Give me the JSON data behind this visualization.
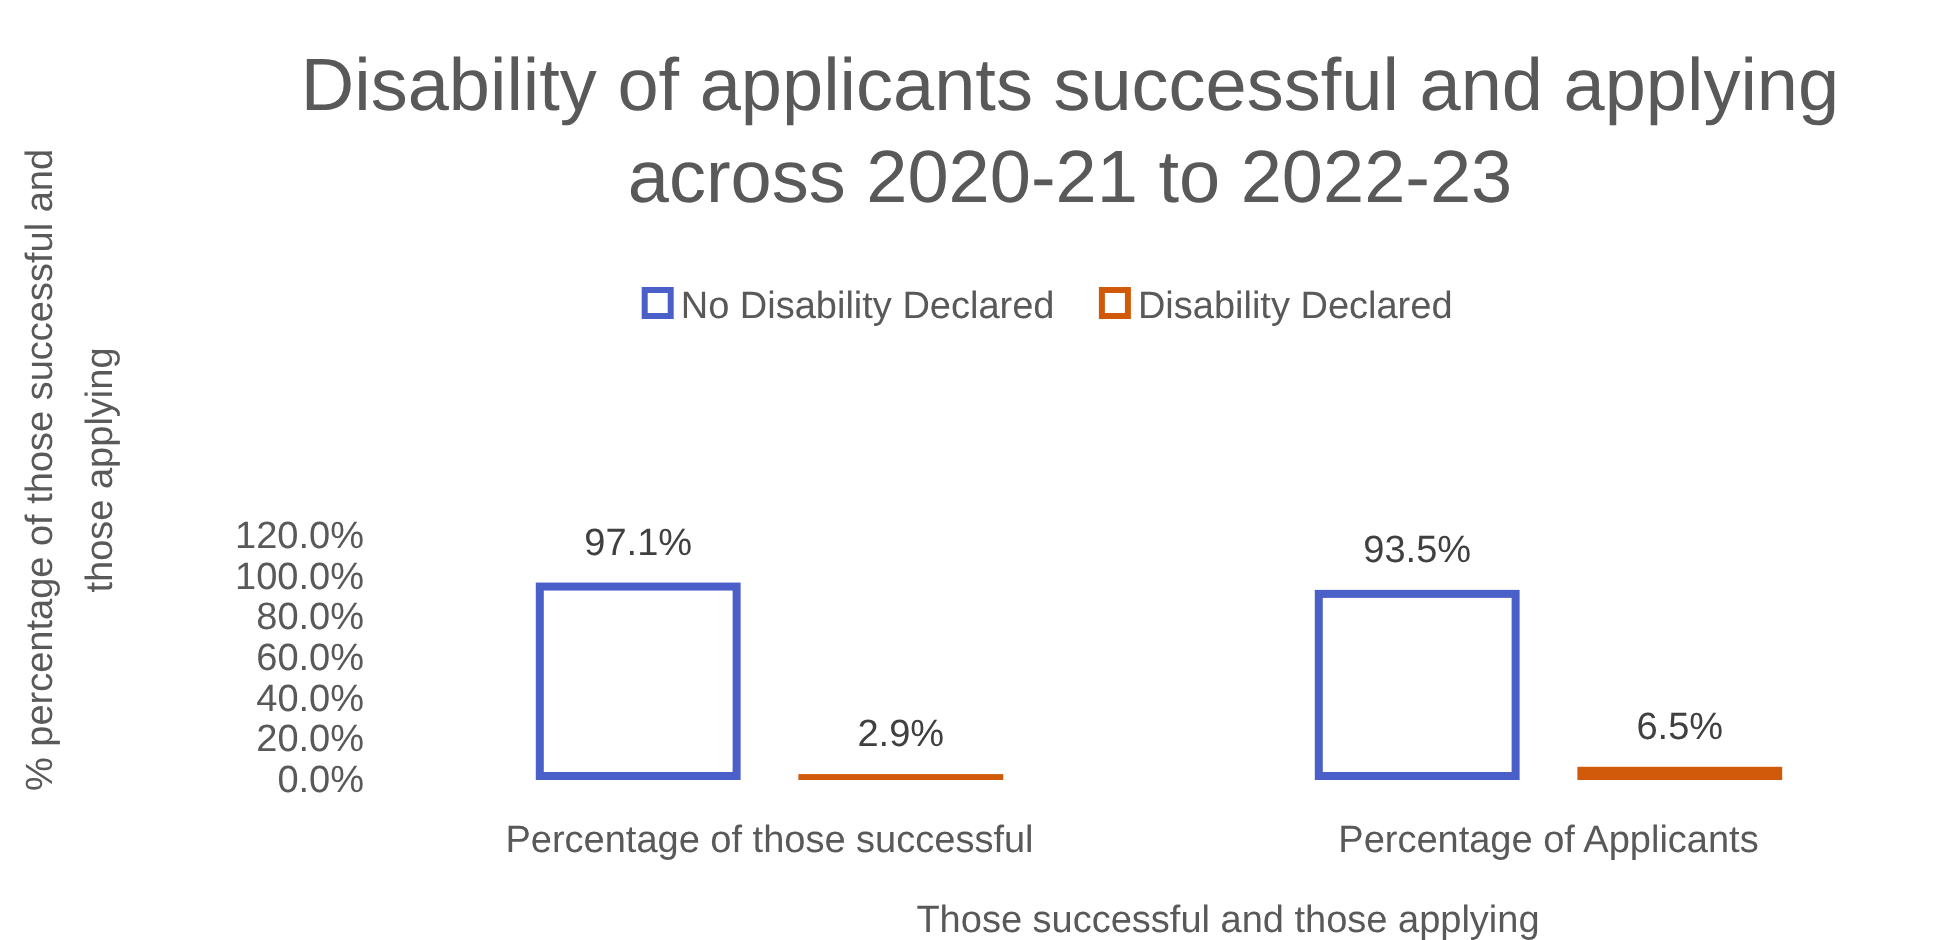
{
  "chart_data": {
    "type": "bar",
    "title": "Disability of applicants successful and applying across 2020-21 to 2022-23",
    "xlabel": "Those successful and those applying",
    "ylabel": "% percentage of those successful and those applying",
    "categories": [
      "Percentage of those successful",
      "Percentage of Applicants"
    ],
    "series": [
      {
        "name": "No Disability Declared",
        "color": "#4a5fc8",
        "values": [
          97.1,
          93.5
        ],
        "value_labels": [
          "97.1%",
          "93.5%"
        ]
      },
      {
        "name": "Disability Declared",
        "color": "#d15a0a",
        "values": [
          2.9,
          6.5
        ],
        "value_labels": [
          "2.9%",
          "6.5%"
        ]
      }
    ],
    "ylim": [
      0,
      120
    ],
    "yticks": [
      {
        "value": 0,
        "label": "0.0%"
      },
      {
        "value": 20,
        "label": "20.0%"
      },
      {
        "value": 40,
        "label": "40.0%"
      },
      {
        "value": 60,
        "label": "60.0%"
      },
      {
        "value": 80,
        "label": "80.0%"
      },
      {
        "value": 100,
        "label": "100.0%"
      },
      {
        "value": 120,
        "label": "120.0%"
      }
    ],
    "legend": "top",
    "grid": false
  }
}
